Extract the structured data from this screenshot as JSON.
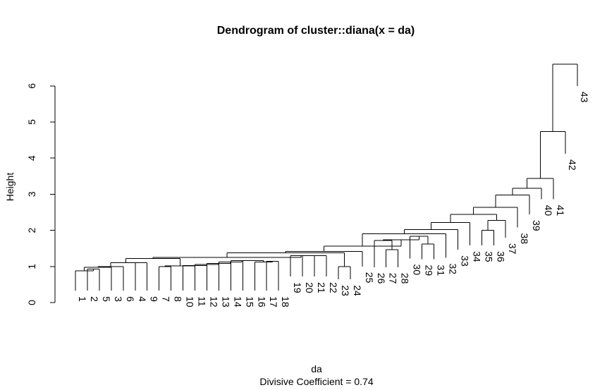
{
  "chart_data": {
    "type": "dendrogram",
    "title": "Dendrogram of  cluster::diana(x = da)",
    "xlabel": "da",
    "sub": "Divisive Coefficient =  0.74",
    "ylabel": "Height",
    "ylim": [
      0,
      6.85
    ],
    "yticks": [
      0,
      1,
      2,
      3,
      4,
      5,
      6
    ],
    "order": [
      1,
      2,
      5,
      3,
      6,
      4,
      9,
      7,
      8,
      10,
      11,
      12,
      13,
      14,
      15,
      16,
      17,
      18,
      19,
      20,
      21,
      22,
      23,
      24,
      25,
      26,
      27,
      28,
      30,
      29,
      31,
      32,
      33,
      34,
      35,
      36,
      37,
      38,
      39,
      40,
      41,
      42,
      43
    ],
    "leaf_tip_heights": [
      0.33,
      0.33,
      0.33,
      0.33,
      0.33,
      0.33,
      0.33,
      0.33,
      0.33,
      0.33,
      0.33,
      0.33,
      0.33,
      0.33,
      0.33,
      0.33,
      0.33,
      0.33,
      0.72,
      0.72,
      0.72,
      0.72,
      0.64,
      0.64,
      1.0,
      0.98,
      0.98,
      0.98,
      1.22,
      1.2,
      1.2,
      1.24,
      1.46,
      1.58,
      1.58,
      1.58,
      1.8,
      2.08,
      2.44,
      2.86,
      2.86,
      4.12,
      6.0
    ],
    "merges": [
      {
        "left": -23,
        "right": -24,
        "height": 1.0
      },
      {
        "left": -29,
        "right": -31,
        "height": 1.62
      },
      {
        "left": -35,
        "right": -36,
        "height": 2.0
      },
      {
        "left": 3,
        "right": -37,
        "height": 2.28
      },
      {
        "left": -27,
        "right": -28,
        "height": 1.46
      },
      {
        "left": -26,
        "right": 5,
        "height": 1.72
      },
      {
        "left": -30,
        "right": 2,
        "height": 1.84
      },
      {
        "left": 6,
        "right": 7,
        "height": 1.74
      },
      {
        "left": -17,
        "right": -18,
        "height": 1.14
      },
      {
        "left": -16,
        "right": 9,
        "height": 1.12
      },
      {
        "left": -15,
        "right": 10,
        "height": 1.16
      },
      {
        "left": -14,
        "right": 11,
        "height": 1.16
      },
      {
        "left": -13,
        "right": 12,
        "height": 1.12
      },
      {
        "left": -12,
        "right": 13,
        "height": 1.08
      },
      {
        "left": -11,
        "right": 14,
        "height": 1.05
      },
      {
        "left": -10,
        "right": 15,
        "height": 1.03
      },
      {
        "left": -7,
        "right": -8,
        "height": 1.0
      },
      {
        "left": 17,
        "right": 16,
        "height": 1.02
      },
      {
        "left": -4,
        "right": -9,
        "height": 1.1
      },
      {
        "left": -2,
        "right": -5,
        "height": 0.93
      },
      {
        "left": -1,
        "right": 20,
        "height": 0.88
      },
      {
        "left": 21,
        "right": -3,
        "height": 0.98
      },
      {
        "left": 22,
        "right": -6,
        "height": 1.0
      },
      {
        "left": 23,
        "right": 19,
        "height": 1.1
      },
      {
        "left": 24,
        "right": 18,
        "height": 1.22
      },
      {
        "left": -21,
        "right": -22,
        "height": 1.3
      },
      {
        "left": -20,
        "right": 26,
        "height": 1.3
      },
      {
        "left": -19,
        "right": 27,
        "height": 1.3
      },
      {
        "left": 25,
        "right": 28,
        "height": 1.25
      },
      {
        "left": 29,
        "right": 1,
        "height": 1.38
      },
      {
        "left": 30,
        "right": -25,
        "height": 1.42
      },
      {
        "left": 31,
        "right": 8,
        "height": 1.56
      },
      {
        "left": 32,
        "right": -32,
        "height": 1.9
      },
      {
        "left": 33,
        "right": -33,
        "height": 2.02
      },
      {
        "left": 34,
        "right": -34,
        "height": 2.22
      },
      {
        "left": 35,
        "right": 4,
        "height": 2.44
      },
      {
        "left": 36,
        "right": -38,
        "height": 2.64
      },
      {
        "left": 37,
        "right": -39,
        "height": 2.98
      },
      {
        "left": 38,
        "right": -40,
        "height": 3.16
      },
      {
        "left": 39,
        "right": -41,
        "height": 3.44
      },
      {
        "left": 40,
        "right": -42,
        "height": 4.74
      },
      {
        "left": 41,
        "right": -43,
        "height": 6.6
      }
    ],
    "grid": false,
    "legend": "none"
  }
}
